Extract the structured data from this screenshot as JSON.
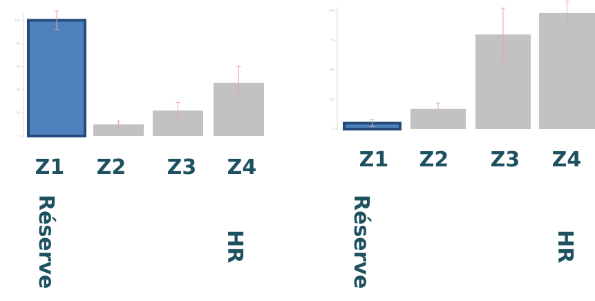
{
  "colors": {
    "highlight_fill": "#4f81bd",
    "highlight_stroke": "#254a7a",
    "bar_fill": "#c2c2c2",
    "error_bar": "#e6a5a5",
    "label_text": "#1d5160",
    "axis": "#d8d8d8"
  },
  "labels": {
    "reserve": "Réserve",
    "hr": "HR"
  },
  "chart_data": [
    {
      "type": "bar",
      "categories": [
        "Z1",
        "Z2",
        "Z3",
        "Z4"
      ],
      "values": [
        100,
        10,
        22,
        46
      ],
      "errors": [
        8,
        3,
        7,
        14
      ],
      "highlight_index": 0,
      "ylim": [
        0,
        105
      ],
      "yticks": [
        0,
        20,
        40,
        60,
        80,
        100
      ]
    },
    {
      "type": "bar",
      "categories": [
        "Z1",
        "Z2",
        "Z3",
        "Z4"
      ],
      "values": [
        5,
        17,
        80,
        98
      ],
      "errors": [
        3,
        5,
        22,
        10
      ],
      "highlight_index": 0,
      "ylim": [
        0,
        102
      ],
      "yticks": [
        0,
        25,
        50,
        75,
        100
      ]
    }
  ]
}
